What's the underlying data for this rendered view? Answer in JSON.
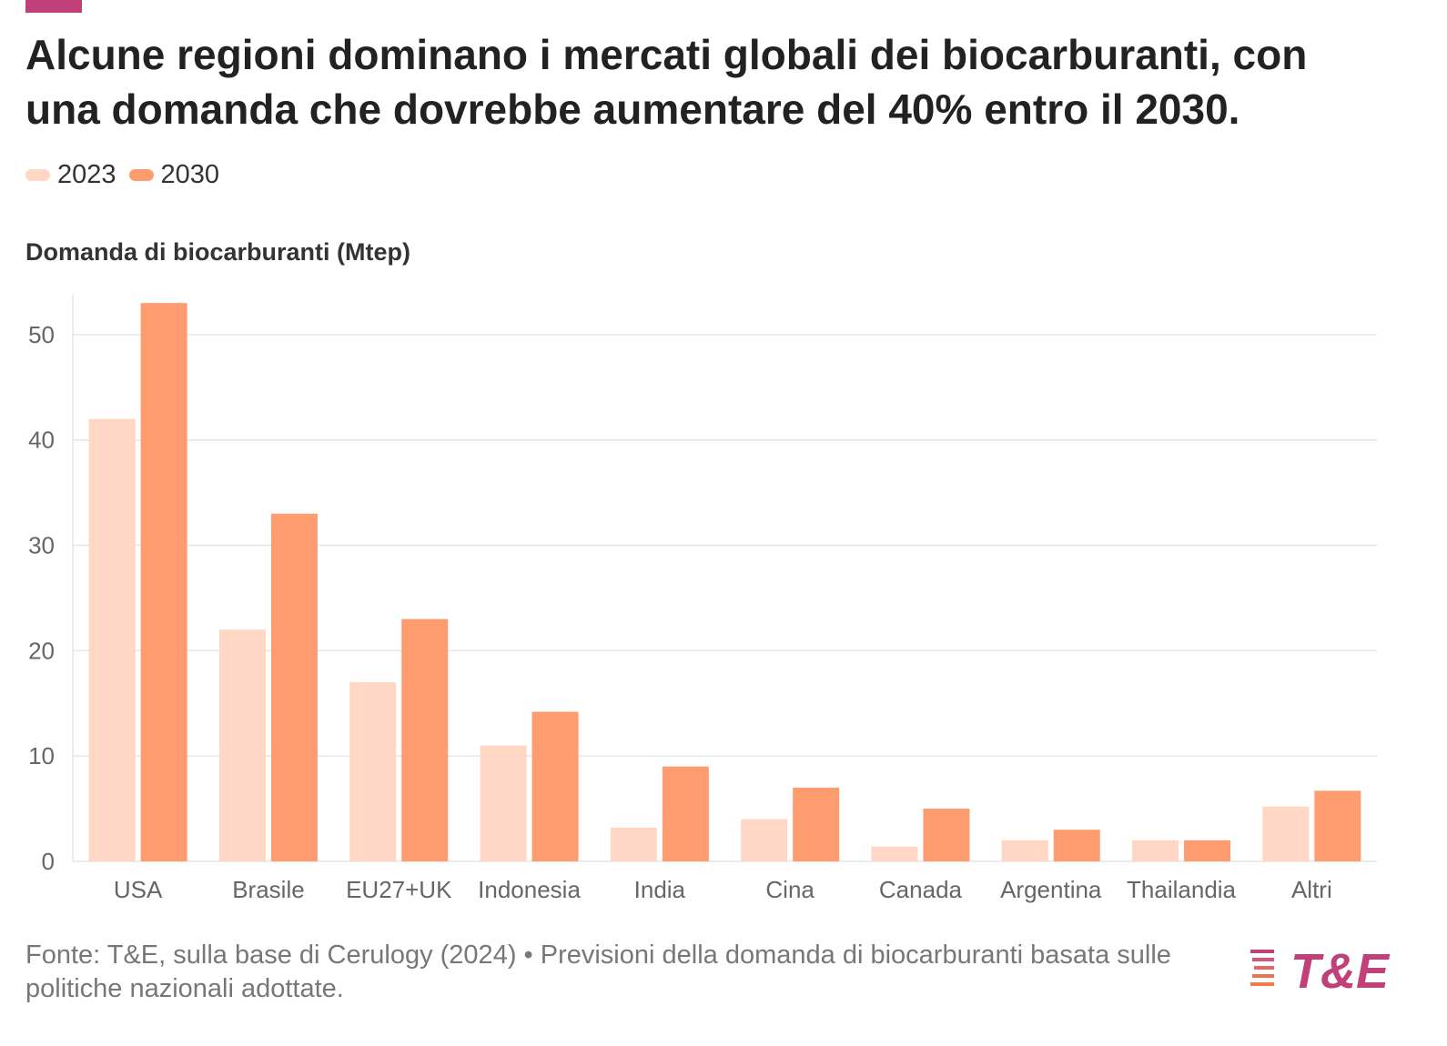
{
  "title": "Alcune regioni dominano i mercati globali dei biocarburanti, con una domanda che dovrebbe aumentare del 40% entro il 2030.",
  "colors": {
    "accent": "#c2407a",
    "series_2023": "#ffd7c4",
    "series_2030": "#fe9c70",
    "grid": "#e6e6e6",
    "logo_pink": "#c2407a",
    "logo_orange": "#f47c4b"
  },
  "footer": {
    "text": "Fonte: T&E, sulla base di Cerulogy (2024) • Previsioni della domanda di biocarburanti basata sulle politiche nazionali adottate."
  },
  "logo": {
    "text": "T&E"
  },
  "chart_data": {
    "type": "bar",
    "title": "Alcune regioni dominano i mercati globali dei biocarburanti, con una domanda che dovrebbe aumentare del 40% entro il 2030.",
    "xlabel": "",
    "ylabel": "Domanda di biocarburanti (Mtep)",
    "ylim": [
      0,
      55
    ],
    "yticks": [
      0,
      10,
      20,
      30,
      40,
      50
    ],
    "grid": true,
    "legend_position": "top-left",
    "categories": [
      "USA",
      "Brasile",
      "EU27+UK",
      "Indonesia",
      "India",
      "Cina",
      "Canada",
      "Argentina",
      "Thailandia",
      "Altri"
    ],
    "series": [
      {
        "name": "2023",
        "color": "#ffd7c4",
        "values": [
          42,
          22,
          17,
          11,
          3.2,
          4,
          1.4,
          2,
          2,
          5.2
        ]
      },
      {
        "name": "2030",
        "color": "#fe9c70",
        "values": [
          53,
          33,
          23,
          14.2,
          9,
          7,
          5,
          3,
          2,
          6.7
        ]
      }
    ]
  }
}
